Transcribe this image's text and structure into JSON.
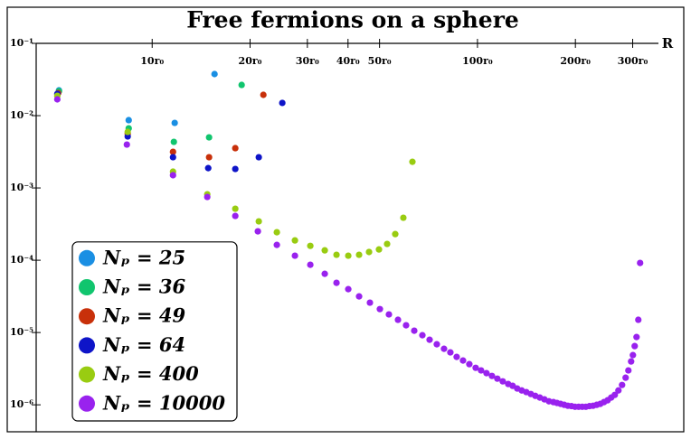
{
  "chart_data": {
    "type": "scatter",
    "title": "Free fermions on a sphere",
    "x_label": "R",
    "log_x": true,
    "log_y": true,
    "legend": "lower left",
    "xlim": [
      4.4,
      360
    ],
    "ylim": [
      4e-07,
      0.1
    ],
    "xticks": [
      {
        "value": 10,
        "label": "10r₀"
      },
      {
        "value": 20,
        "label": "20r₀"
      },
      {
        "value": 30,
        "label": "30r₀"
      },
      {
        "value": 40,
        "label": "40r₀"
      },
      {
        "value": 50,
        "label": "50r₀"
      },
      {
        "value": 100,
        "label": "100r₀"
      },
      {
        "value": 200,
        "label": "200r₀"
      },
      {
        "value": 300,
        "label": "300r₀"
      }
    ],
    "yticks": [
      {
        "value": 0.1,
        "label": "10⁻¹"
      },
      {
        "value": 0.01,
        "label": "10⁻²"
      },
      {
        "value": 0.001,
        "label": "10⁻³"
      },
      {
        "value": 0.0001,
        "label": "10⁻⁴"
      },
      {
        "value": 1e-05,
        "label": "10⁻⁵"
      },
      {
        "value": 1e-06,
        "label": "10⁻⁶"
      }
    ],
    "series": [
      {
        "name": "Nₚ = 25",
        "color": "#1a8fe3",
        "x": [
          5.17,
          8.47,
          11.73,
          15.55
        ],
        "values": [
          0.0224,
          0.00866,
          0.00794,
          0.0376
        ]
      },
      {
        "name": "Nₚ = 36",
        "color": "#11c56e",
        "x": [
          5.17,
          8.47,
          11.66,
          14.96,
          18.84
        ],
        "values": [
          0.0218,
          0.00668,
          0.00434,
          0.00501,
          0.0266
        ]
      },
      {
        "name": "Nₚ = 49",
        "color": "#c8300a",
        "x": [
          5.14,
          8.41,
          11.59,
          14.96,
          18.01,
          21.97
        ],
        "values": [
          0.0205,
          0.00562,
          0.00316,
          0.00266,
          0.00355,
          0.0194
        ]
      },
      {
        "name": "Nₚ = 64",
        "color": "#0e14c8",
        "x": [
          5.11,
          8.41,
          11.59,
          14.87,
          18.01,
          21.27,
          25.12
        ],
        "values": [
          0.02,
          0.00516,
          0.00266,
          0.00188,
          0.00183,
          0.00266,
          0.015
        ]
      },
      {
        "name": "Nₚ = 400",
        "color": "#99cc11",
        "x": [
          5.11,
          8.41,
          11.59,
          14.77,
          18.01,
          21.27,
          24.17,
          27.47,
          30.63,
          33.93,
          36.87,
          40.07,
          43.26,
          46.42,
          49.8,
          52.75,
          55.88,
          59.18,
          63.1
        ],
        "values": [
          0.0188,
          0.00596,
          0.00168,
          0.000818,
          0.000516,
          0.000345,
          0.000244,
          0.000188,
          0.000158,
          0.000137,
          0.000119,
          0.0001155,
          0.000119,
          0.00013,
          0.000141,
          0.000168,
          0.00023,
          0.000387,
          0.0023
        ]
      },
      {
        "name": "Nₚ = 10000",
        "color": "#9922ee",
        "x": [
          5.11,
          8.36,
          11.59,
          14.77,
          18.01,
          21.13,
          24.17,
          27.47,
          30.63,
          33.93,
          36.87,
          40.07,
          43.26,
          46.71,
          50.12,
          53.43,
          56.97,
          60.33,
          63.92,
          67.71,
          71.26,
          74.99,
          78.92,
          82.54,
          86.31,
          90.28,
          94.41,
          98.73,
          102.6,
          106.6,
          110.8,
          115.1,
          119.6,
          124.3,
          128.3,
          132.5,
          136.8,
          141.3,
          145.9,
          150.6,
          155.5,
          160.6,
          165.8,
          171.2,
          175.6,
          180.1,
          184.8,
          189.6,
          194.5,
          199.5,
          204.7,
          210.0,
          215.4,
          221.0,
          226.7,
          232.6,
          238.6,
          244.8,
          251.2,
          257.7,
          264.3,
          271.2,
          278.3,
          285.4,
          291.0,
          296.7,
          300.5,
          304.3,
          308.3,
          312.2,
          316.2
        ],
        "values": [
          0.0168,
          0.00398,
          0.0015,
          0.00075,
          0.00041,
          0.000251,
          0.000163,
          0.0001155,
          8.66e-05,
          6.49e-05,
          4.87e-05,
          3.98e-05,
          3.16e-05,
          2.59e-05,
          2.11e-05,
          1.78e-05,
          1.5e-05,
          1.26e-05,
          1.06e-05,
          9.17e-06,
          7.94e-06,
          6.88e-06,
          5.96e-06,
          5.31e-06,
          4.6e-06,
          4.1e-06,
          3.65e-06,
          3.25e-06,
          2.99e-06,
          2.74e-06,
          2.51e-06,
          2.3e-06,
          2.11e-06,
          1.94e-06,
          1.83e-06,
          1.68e-06,
          1.58e-06,
          1.5e-06,
          1.41e-06,
          1.33e-06,
          1.26e-06,
          1.19e-06,
          1.12e-06,
          1.09e-06,
          1.06e-06,
          1.03e-06,
          1e-06,
          9.7e-07,
          9.6e-07,
          9.4e-07,
          9.4e-07,
          9.4e-07,
          9.4e-07,
          9.6e-07,
          9.7e-07,
          1e-06,
          1.03e-06,
          1.09e-06,
          1.155e-06,
          1.26e-06,
          1.37e-06,
          1.58e-06,
          1.88e-06,
          2.37e-06,
          2.99e-06,
          3.98e-06,
          4.87e-06,
          6.49e-06,
          8.66e-06,
          1.5e-05,
          9.17e-05
        ]
      }
    ]
  }
}
